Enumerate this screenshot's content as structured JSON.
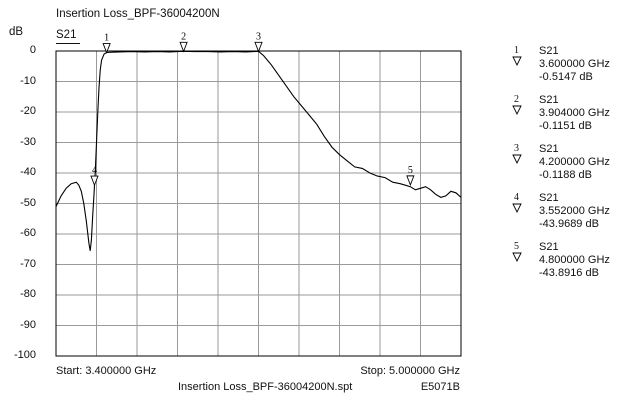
{
  "chart_data": {
    "type": "line",
    "title": "Insertion Loss_BPF-36004200N",
    "trace": "S21",
    "ylabel": "dB",
    "ylim": [
      -100,
      0
    ],
    "y_ticks": [
      "0",
      "-10",
      "-20",
      "-30",
      "-40",
      "-50",
      "-60",
      "-70",
      "-80",
      "-90",
      "-100"
    ],
    "xlim": [
      3.4,
      5.0
    ],
    "x_unit": "GHz",
    "grid": true,
    "start_label": "Start: 3.400000 GHz",
    "stop_label": "Stop: 5.000000 GHz",
    "file_label": "Insertion Loss_BPF-36004200N.spt",
    "instrument_label": "E5071B",
    "series": [
      {
        "x": [
          3.4,
          3.42,
          3.44,
          3.46,
          3.48,
          3.49,
          3.5,
          3.51,
          3.52,
          3.53,
          3.535,
          3.54,
          3.545,
          3.55,
          3.552,
          3.555,
          3.56,
          3.565,
          3.57,
          3.575,
          3.58,
          3.59,
          3.6,
          3.62,
          3.65,
          3.7,
          3.75,
          3.8,
          3.85,
          3.9,
          3.95,
          4.0,
          4.05,
          4.1,
          4.15,
          4.18,
          4.2,
          4.22,
          4.25,
          4.28,
          4.31,
          4.34,
          4.37,
          4.4,
          4.43,
          4.46,
          4.49,
          4.52,
          4.55,
          4.58,
          4.61,
          4.64,
          4.67,
          4.7,
          4.73,
          4.76,
          4.78,
          4.8,
          4.82,
          4.84,
          4.86,
          4.88,
          4.9,
          4.92,
          4.94,
          4.96,
          4.98,
          5.0
        ],
        "y": [
          -51,
          -47.5,
          -45,
          -43.5,
          -43,
          -44,
          -46,
          -50,
          -56,
          -63,
          -65.5,
          -62,
          -54,
          -47,
          -44,
          -40,
          -30,
          -20,
          -12,
          -6,
          -3,
          -1,
          -0.5,
          -0.4,
          -0.3,
          -0.2,
          -0.3,
          -0.2,
          -0.3,
          -0.1,
          -0.2,
          -0.2,
          -0.3,
          -0.2,
          -0.3,
          -0.2,
          -0.1,
          -1.5,
          -4.5,
          -8,
          -11.5,
          -15,
          -18,
          -21,
          -24,
          -28,
          -31.5,
          -34,
          -36,
          -38,
          -38.5,
          -40,
          -41,
          -41.5,
          -43,
          -43.5,
          -44,
          -44.5,
          -45.5,
          -45,
          -44.5,
          -45.5,
          -47,
          -48,
          -47.5,
          -46,
          -46.5,
          -48
        ]
      }
    ],
    "markers": [
      {
        "n": "1",
        "trace": "S21",
        "freq": "3.600000 GHz",
        "value": "-0.5147 dB",
        "x": 3.6,
        "y": -0.5147
      },
      {
        "n": "2",
        "trace": "S21",
        "freq": "3.904000 GHz",
        "value": "-0.1151 dB",
        "x": 3.904,
        "y": -0.1151
      },
      {
        "n": "3",
        "trace": "S21",
        "freq": "4.200000 GHz",
        "value": "-0.1188 dB",
        "x": 4.2,
        "y": -0.1188
      },
      {
        "n": "4",
        "trace": "S21",
        "freq": "3.552000 GHz",
        "value": "-43.9689 dB",
        "x": 3.552,
        "y": -43.9689
      },
      {
        "n": "5",
        "trace": "S21",
        "freq": "4.800000 GHz",
        "value": "-43.8916 dB",
        "x": 4.8,
        "y": -43.8916
      }
    ],
    "colors": {
      "trace": "#000000",
      "grid": "#9a9a9a",
      "frame": "#000000"
    }
  }
}
